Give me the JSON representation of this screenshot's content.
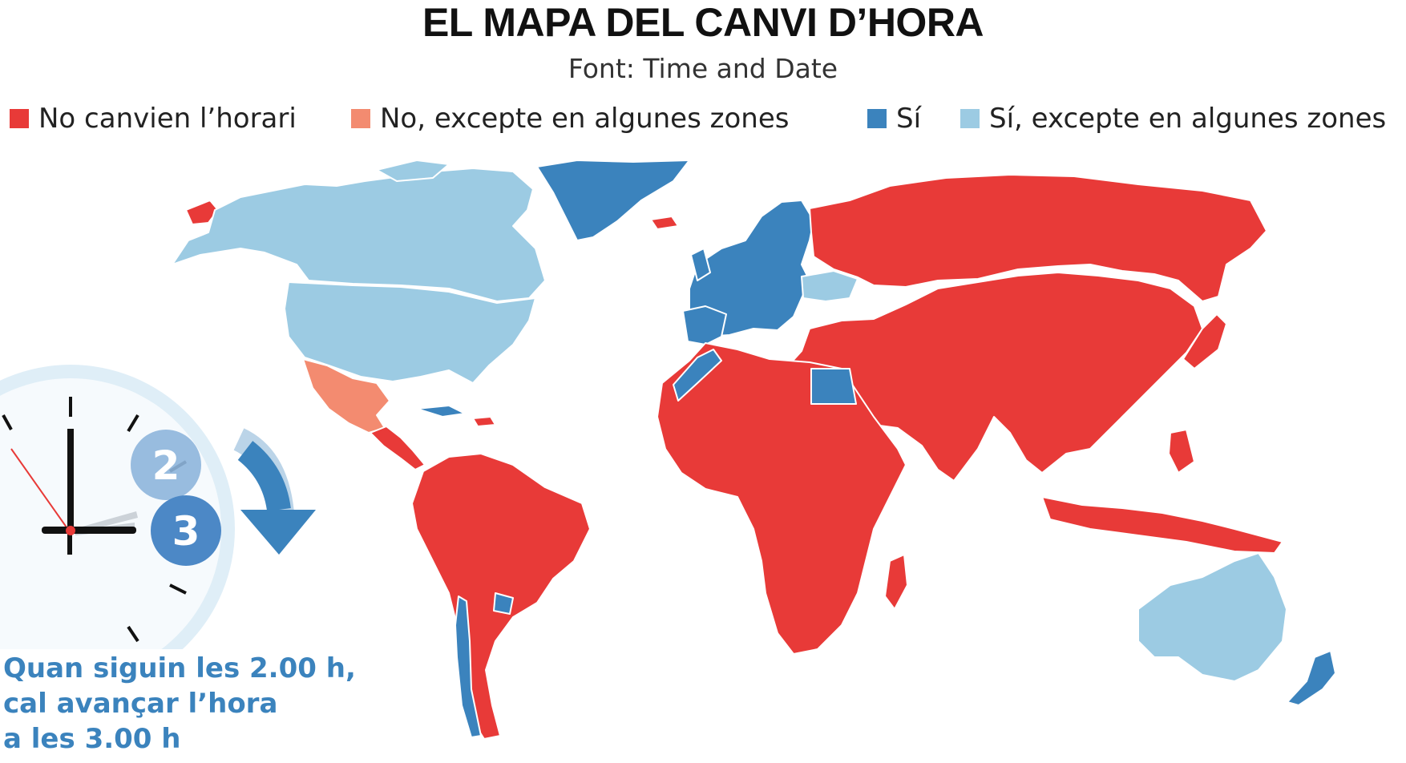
{
  "title": "EL MAPA DEL CANVI D’HORA",
  "source": "Font: Time and Date",
  "legend": [
    {
      "label": "No canvien l’horari",
      "color": "#e83a38"
    },
    {
      "label": "No, excepte en algunes zones",
      "color": "#f38b70"
    },
    {
      "label": "Sí",
      "color": "#3b83bd"
    },
    {
      "label": "Sí, excepte en algunes zones",
      "color": "#9ccbe3"
    }
  ],
  "colors": {
    "no_change": "#e83a38",
    "no_except_some": "#f38b70",
    "yes": "#3b83bd",
    "yes_except_some": "#9ccbe3",
    "border": "#ffffff"
  },
  "clock": {
    "from_label": "2",
    "to_label": "3",
    "arrow_icon": "curved-down-arrow-icon"
  },
  "caption": {
    "line1": "Quan siguin les 2.00 h,",
    "line2": "cal avançar l’hora",
    "line3": "a les 3.00 h"
  }
}
